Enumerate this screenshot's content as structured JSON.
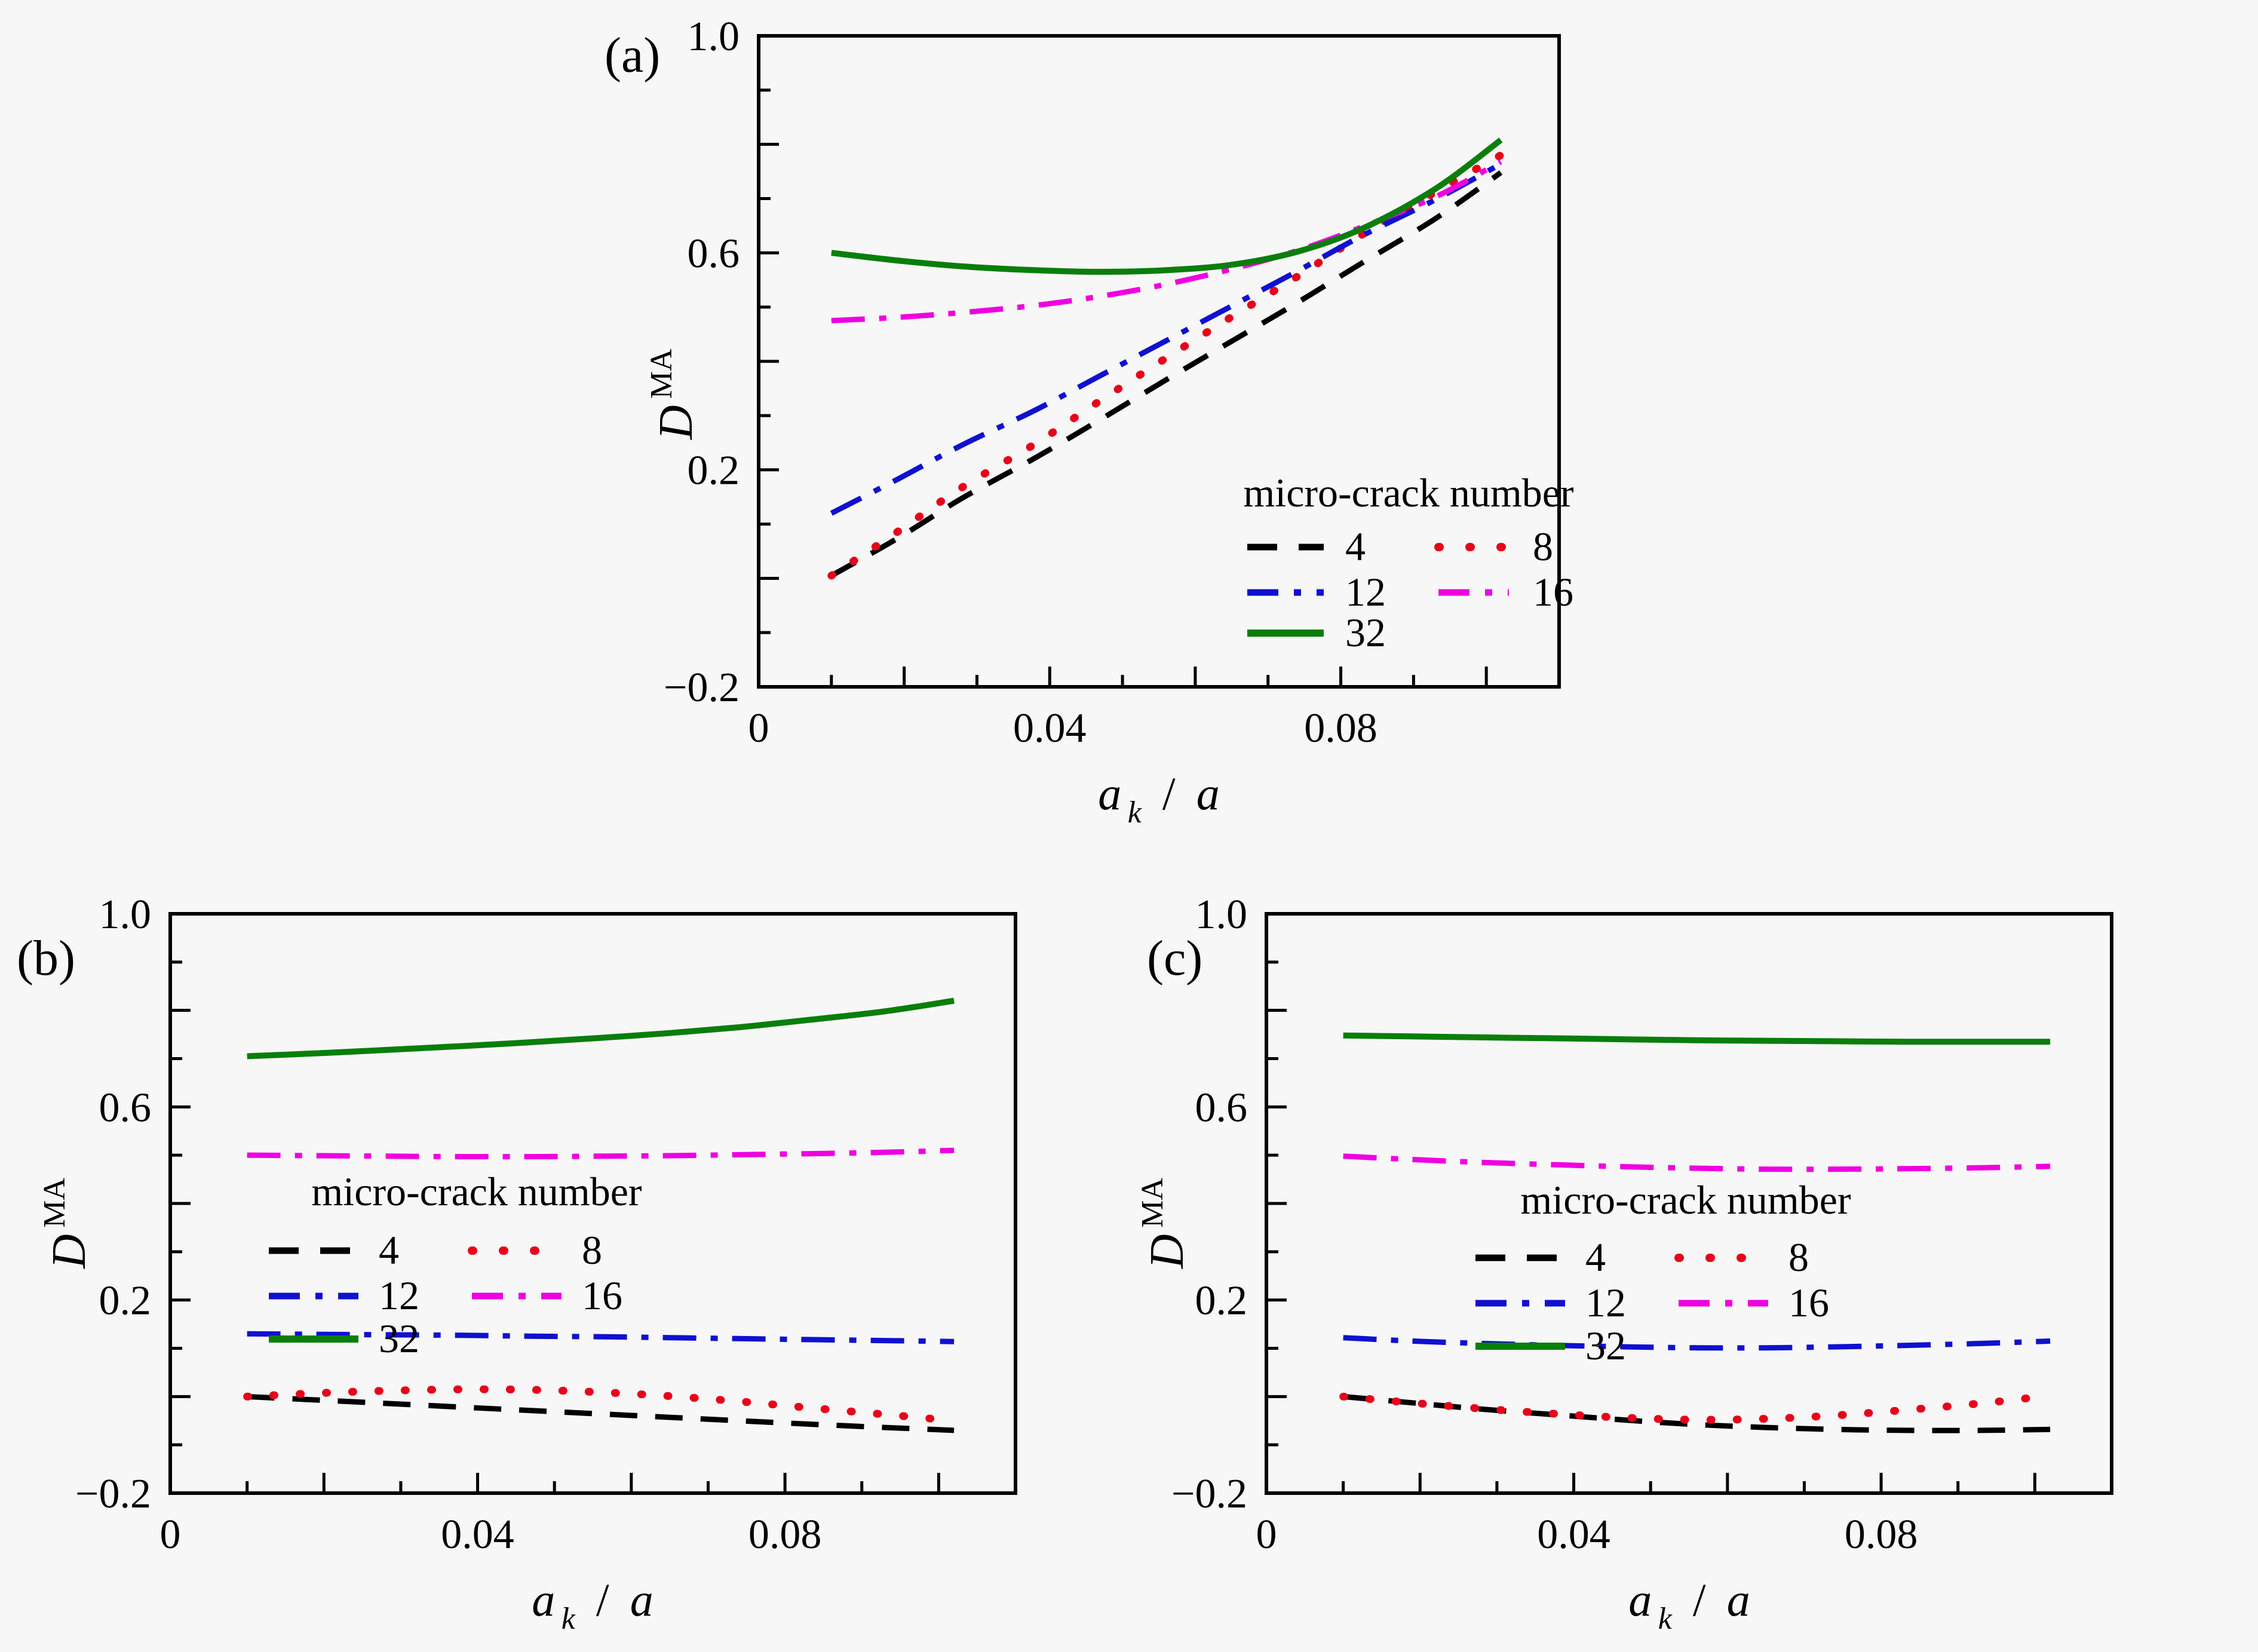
{
  "figure": {
    "background": "#f7f7f7",
    "panels": [
      "(a)",
      "(b)",
      "(c)"
    ]
  },
  "legend": {
    "title": "micro-crack number",
    "rows": [
      [
        "4",
        "8"
      ],
      [
        "12",
        "16"
      ],
      [
        "32"
      ]
    ]
  },
  "series_styles": [
    {
      "id": "4",
      "label": "4",
      "color": "#000000",
      "pattern": "dashed"
    },
    {
      "id": "8",
      "label": "8",
      "color": "#e8001a",
      "pattern": "dotted"
    },
    {
      "id": "12",
      "label": "12",
      "color": "#1010d0",
      "pattern": "dashdot"
    },
    {
      "id": "16",
      "label": "16",
      "color": "#ee00e0",
      "pattern": "dashdot"
    },
    {
      "id": "32",
      "label": "32",
      "color": "#0a7e0a",
      "pattern": "solid"
    }
  ],
  "axes": {
    "xlabel": {
      "base": "a",
      "sub": "k",
      "sep": " / ",
      "base2": "a"
    },
    "ylabel": {
      "base": "D",
      "sup": "MA"
    },
    "xlim": [
      0,
      0.11
    ],
    "ylim": [
      -0.2,
      1.0
    ],
    "x_tick_labels": [
      {
        "value": 0,
        "label": "0"
      },
      {
        "value": 0.04,
        "label": "0.04"
      },
      {
        "value": 0.08,
        "label": "0.08"
      }
    ],
    "y_tick_labels": [
      {
        "value": 1.0,
        "label": "1.0"
      },
      {
        "value": 0.6,
        "label": "0.6"
      },
      {
        "value": 0.2,
        "label": "0.2"
      },
      {
        "value": -0.2,
        "label": "−0.2"
      }
    ],
    "minor_tick_step": 0.01,
    "grid": false
  },
  "chart_data": [
    {
      "type": "line",
      "panel": "(a)",
      "title": "",
      "xlabel": "a_k / a",
      "ylabel": "D^MA",
      "xlim": [
        0,
        0.11
      ],
      "ylim": [
        -0.2,
        1.0
      ],
      "legend_title": "micro-crack number",
      "legend_position": "lower right",
      "x": [
        0.01,
        0.019,
        0.028,
        0.038,
        0.047,
        0.056,
        0.065,
        0.074,
        0.083,
        0.093,
        0.102
      ],
      "series": [
        {
          "name": "4",
          "values": [
            0.005,
            0.073,
            0.148,
            0.222,
            0.293,
            0.366,
            0.437,
            0.508,
            0.582,
            0.663,
            0.748
          ]
        },
        {
          "name": "8",
          "values": [
            0.005,
            0.085,
            0.168,
            0.248,
            0.328,
            0.406,
            0.482,
            0.556,
            0.634,
            0.712,
            0.78
          ]
        },
        {
          "name": "12",
          "values": [
            0.12,
            0.182,
            0.246,
            0.31,
            0.374,
            0.438,
            0.502,
            0.566,
            0.632,
            0.698,
            0.764
          ]
        },
        {
          "name": "16",
          "values": [
            0.475,
            0.481,
            0.49,
            0.503,
            0.52,
            0.542,
            0.57,
            0.604,
            0.648,
            0.703,
            0.768
          ]
        },
        {
          "name": "32",
          "values": [
            0.6,
            0.586,
            0.575,
            0.568,
            0.565,
            0.568,
            0.578,
            0.602,
            0.645,
            0.718,
            0.808
          ]
        }
      ]
    },
    {
      "type": "line",
      "panel": "(b)",
      "title": "",
      "xlabel": "a_k / a",
      "ylabel": "D^MA",
      "xlim": [
        0,
        0.11
      ],
      "ylim": [
        -0.2,
        1.0
      ],
      "legend_title": "micro-crack number",
      "legend_position": "center left",
      "x": [
        0.01,
        0.019,
        0.028,
        0.038,
        0.047,
        0.056,
        0.065,
        0.074,
        0.083,
        0.093,
        0.102
      ],
      "series": [
        {
          "name": "4",
          "values": [
            0.0,
            -0.007,
            -0.014,
            -0.022,
            -0.029,
            -0.036,
            -0.043,
            -0.05,
            -0.057,
            -0.064,
            -0.07
          ]
        },
        {
          "name": "8",
          "values": [
            0.0,
            0.007,
            0.012,
            0.015,
            0.014,
            0.009,
            0.001,
            -0.01,
            -0.023,
            -0.037,
            -0.05
          ]
        },
        {
          "name": "12",
          "values": [
            0.13,
            0.129,
            0.128,
            0.127,
            0.125,
            0.124,
            0.122,
            0.12,
            0.118,
            0.116,
            0.114
          ]
        },
        {
          "name": "16",
          "values": [
            0.5,
            0.499,
            0.498,
            0.497,
            0.497,
            0.498,
            0.499,
            0.501,
            0.503,
            0.506,
            0.51
          ]
        },
        {
          "name": "32",
          "values": [
            0.705,
            0.711,
            0.718,
            0.726,
            0.734,
            0.743,
            0.753,
            0.765,
            0.78,
            0.798,
            0.82
          ]
        }
      ]
    },
    {
      "type": "line",
      "panel": "(c)",
      "title": "",
      "xlabel": "a_k / a",
      "ylabel": "D^MA",
      "xlim": [
        0,
        0.11
      ],
      "ylim": [
        -0.2,
        1.0
      ],
      "legend_title": "micro-crack number",
      "legend_position": "center left",
      "x": [
        0.01,
        0.019,
        0.028,
        0.038,
        0.047,
        0.056,
        0.065,
        0.074,
        0.083,
        0.093,
        0.102
      ],
      "series": [
        {
          "name": "4",
          "values": [
            0.0,
            -0.013,
            -0.026,
            -0.038,
            -0.049,
            -0.058,
            -0.064,
            -0.068,
            -0.07,
            -0.07,
            -0.068
          ]
        },
        {
          "name": "8",
          "values": [
            0.0,
            -0.013,
            -0.025,
            -0.036,
            -0.044,
            -0.048,
            -0.046,
            -0.039,
            -0.028,
            -0.014,
            0.002
          ]
        },
        {
          "name": "12",
          "values": [
            0.122,
            0.115,
            0.11,
            0.106,
            0.103,
            0.101,
            0.101,
            0.103,
            0.106,
            0.11,
            0.115
          ]
        },
        {
          "name": "16",
          "values": [
            0.498,
            0.491,
            0.485,
            0.48,
            0.476,
            0.473,
            0.471,
            0.471,
            0.472,
            0.474,
            0.477
          ]
        },
        {
          "name": "32",
          "values": [
            0.748,
            0.746,
            0.744,
            0.742,
            0.74,
            0.738,
            0.737,
            0.736,
            0.735,
            0.735,
            0.735
          ]
        }
      ]
    }
  ]
}
